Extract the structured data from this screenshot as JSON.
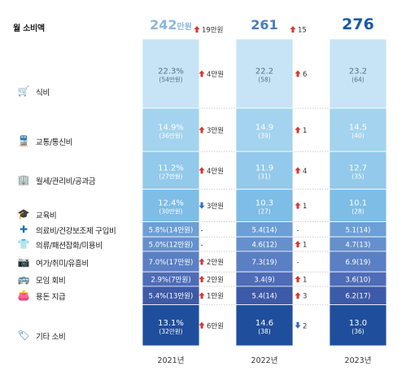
{
  "chart_data": {
    "type": "bar",
    "title": "월 소비액",
    "categories": [
      "2021년",
      "2022년",
      "2023년"
    ],
    "totals": {
      "2021년": {
        "label": "242",
        "unit": "만원",
        "color": "#8db6dc"
      },
      "2022년": {
        "label": "261",
        "color": "#4a7db8"
      },
      "2023년": {
        "label": "276",
        "color": "#1a5aa6"
      }
    },
    "total_changes": [
      {
        "text": "19만원",
        "direction": "up"
      },
      {
        "text": "15",
        "direction": "up"
      }
    ],
    "series": [
      {
        "name": "식비",
        "icon": "cart-icon",
        "values": [
          54,
          58,
          64
        ],
        "labels": [
          "22.3%",
          "22.2",
          "23.2"
        ],
        "sublabels": [
          "(54만원)",
          "(58)",
          "(64)"
        ],
        "changes": [
          {
            "text": "4만원",
            "direction": "up"
          },
          {
            "text": "6",
            "direction": "up"
          }
        ]
      },
      {
        "name": "교통/통신비",
        "icon": "train-icon",
        "values": [
          36,
          39,
          40
        ],
        "labels": [
          "14.9%",
          "14.9",
          "14.5"
        ],
        "sublabels": [
          "(36만원)",
          "(39)",
          "(40)"
        ],
        "changes": [
          {
            "text": "3만원",
            "direction": "up"
          },
          {
            "text": "1",
            "direction": "up"
          }
        ]
      },
      {
        "name": "월세/관리비/공과금",
        "icon": "building-icon",
        "values": [
          27,
          31,
          35
        ],
        "labels": [
          "11.2%",
          "11.9",
          "12.7"
        ],
        "sublabels": [
          "(27만원)",
          "(31)",
          "(35)"
        ],
        "changes": [
          {
            "text": "4만원",
            "direction": "up"
          },
          {
            "text": "4",
            "direction": "up"
          }
        ]
      },
      {
        "name": "교육비",
        "icon": "graduation-cap-icon",
        "values": [
          30,
          27,
          28
        ],
        "labels": [
          "12.4%",
          "10.3",
          "10.1"
        ],
        "sublabels": [
          "(30만원)",
          "(27)",
          "(28)"
        ],
        "changes": [
          {
            "text": "3만원",
            "direction": "down"
          },
          {
            "text": "1",
            "direction": "up"
          }
        ]
      },
      {
        "name": "의료비/건강보조제 구입비",
        "icon": "medical-kit-icon",
        "values": [
          14,
          14,
          14
        ],
        "labels": [
          "5.8%(14만원)",
          "5.4(14)",
          "5.1(14)"
        ],
        "sublabels": [
          "",
          "",
          ""
        ],
        "changes": [
          {
            "text": "-",
            "direction": "none"
          },
          {
            "text": "-",
            "direction": "none"
          }
        ]
      },
      {
        "name": "의류/패션잡화/미용비",
        "icon": "clothing-icon",
        "values": [
          12,
          12,
          13
        ],
        "labels": [
          "5.0%(12만원)",
          "4.6(12)",
          "4.7(13)"
        ],
        "sublabels": [
          "",
          "",
          ""
        ],
        "changes": [
          {
            "text": "-",
            "direction": "none"
          },
          {
            "text": "1",
            "direction": "up"
          }
        ]
      },
      {
        "name": "여가/취미/유흥비",
        "icon": "camera-icon",
        "values": [
          17,
          19,
          19
        ],
        "labels": [
          "7.0%(17만원)",
          "7.3(19)",
          "6.9(19)"
        ],
        "sublabels": [
          "",
          "",
          ""
        ],
        "changes": [
          {
            "text": "2만원",
            "direction": "up"
          },
          {
            "text": "-",
            "direction": "none"
          }
        ]
      },
      {
        "name": "모임 회비",
        "icon": "bus-icon",
        "values": [
          7,
          9,
          10
        ],
        "labels": [
          "2.9%(7만원)",
          "3.4(9)",
          "3.6(10)"
        ],
        "sublabels": [
          "",
          "",
          ""
        ],
        "changes": [
          {
            "text": "2만원",
            "direction": "up"
          },
          {
            "text": "1",
            "direction": "up"
          }
        ]
      },
      {
        "name": "용돈 지급",
        "icon": "wallet-icon",
        "values": [
          13,
          14,
          17
        ],
        "labels": [
          "5.4%(13만원)",
          "5.4(14)",
          "6.2(17)"
        ],
        "sublabels": [
          "",
          "",
          ""
        ],
        "changes": [
          {
            "text": "1만원",
            "direction": "up"
          },
          {
            "text": "3",
            "direction": "up"
          }
        ]
      },
      {
        "name": "기타 소비",
        "icon": "buy-tag-icon",
        "values": [
          32,
          38,
          36
        ],
        "labels": [
          "13.1%",
          "14.6",
          "13.0"
        ],
        "sublabels": [
          "(32만원)",
          "(38)",
          "(36)"
        ],
        "changes": [
          {
            "text": "6만원",
            "direction": "up"
          },
          {
            "text": "2",
            "direction": "down"
          }
        ]
      }
    ],
    "colors": {
      "stack": [
        "#c6e4f5",
        "#a3d3ee",
        "#93c9ea",
        "#7dbde6",
        "#6d9fd6",
        "#6690cc",
        "#5b7fc4",
        "#4e6cb7",
        "#3d5aa8",
        "#1f4e9c"
      ],
      "up_arrow": "#d9372e",
      "down_arrow": "#2f6fc0",
      "change_text": "#333333",
      "icon": "#1c6fb5"
    },
    "legend": "left, per-row category labels with icons"
  }
}
